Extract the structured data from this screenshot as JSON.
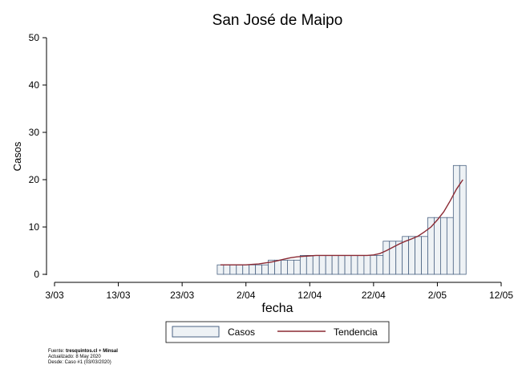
{
  "chart_data": {
    "type": "bar",
    "title": "San José de Maipo",
    "xlabel": "fecha",
    "ylabel": "Casos",
    "x_ticks": [
      "3/03",
      "13/03",
      "23/03",
      "2/04",
      "12/04",
      "22/04",
      "2/05",
      "12/05"
    ],
    "y_ticks": [
      "0",
      "10",
      "20",
      "30",
      "40",
      "50"
    ],
    "ylim": [
      0,
      50
    ],
    "xlim": [
      "2020-03-03",
      "2020-05-12"
    ],
    "dates": [
      "2020-03-29",
      "2020-03-30",
      "2020-03-31",
      "2020-04-01",
      "2020-04-02",
      "2020-04-03",
      "2020-04-04",
      "2020-04-05",
      "2020-04-06",
      "2020-04-07",
      "2020-04-08",
      "2020-04-09",
      "2020-04-10",
      "2020-04-11",
      "2020-04-12",
      "2020-04-13",
      "2020-04-14",
      "2020-04-15",
      "2020-04-16",
      "2020-04-17",
      "2020-04-18",
      "2020-04-19",
      "2020-04-20",
      "2020-04-21",
      "2020-04-22",
      "2020-04-23",
      "2020-04-24",
      "2020-04-25",
      "2020-04-26",
      "2020-04-27",
      "2020-04-28",
      "2020-04-29",
      "2020-04-30",
      "2020-05-01",
      "2020-05-02",
      "2020-05-03",
      "2020-05-04",
      "2020-05-05",
      "2020-05-06"
    ],
    "series": [
      {
        "name": "Casos",
        "type": "bar",
        "color": "#eef2f5",
        "edge_color": "#4a6282",
        "values": [
          2,
          2,
          2,
          2,
          2,
          2,
          2,
          2,
          3,
          3,
          3,
          3,
          3,
          4,
          4,
          4,
          4,
          4,
          4,
          4,
          4,
          4,
          4,
          4,
          4,
          4,
          7,
          7,
          7,
          8,
          8,
          8,
          8,
          12,
          12,
          12,
          12,
          23,
          23
        ]
      },
      {
        "name": "Tendencia",
        "type": "line",
        "color": "#8b2a34",
        "values": [
          2,
          2,
          2,
          2,
          2,
          2.1,
          2.2,
          2.4,
          2.6,
          2.9,
          3.2,
          3.5,
          3.7,
          3.8,
          3.9,
          4,
          4,
          4,
          4,
          4,
          4,
          4,
          4,
          4,
          4.1,
          4.4,
          5,
          5.7,
          6.4,
          7,
          7.5,
          8.1,
          9,
          10,
          11.5,
          13.2,
          15.5,
          18,
          20
        ]
      }
    ],
    "legend": {
      "position": "bottom",
      "entries": [
        "Casos",
        "Tendencia"
      ]
    },
    "grid": false
  },
  "footer": {
    "source_label": "Fuente: ",
    "source_value": "tresquintos.cl + Minsal",
    "updated": "Actualizado: 8 May 2020",
    "since": "Desde: Caso #1  (03/03/2020)"
  }
}
